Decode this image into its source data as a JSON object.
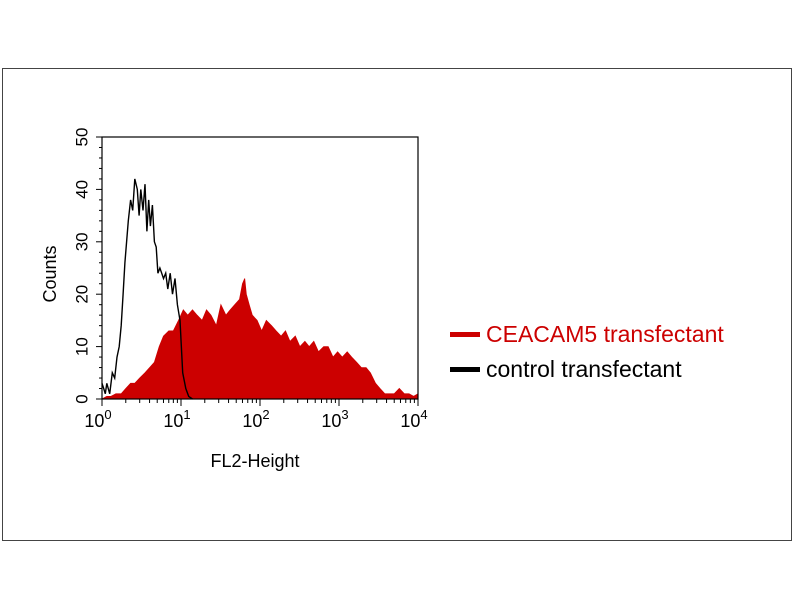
{
  "chart_data": {
    "type": "area",
    "xlabel": "FL2-Height",
    "ylabel": "Counts",
    "xscale": "log",
    "xlim": [
      1,
      10000
    ],
    "ylim": [
      0,
      50
    ],
    "yticks": [
      "0",
      "10",
      "20",
      "30",
      "40",
      "50"
    ],
    "xticks": [
      {
        "base": "10",
        "exp": "0"
      },
      {
        "base": "10",
        "exp": "1"
      },
      {
        "base": "10",
        "exp": "2"
      },
      {
        "base": "10",
        "exp": "3"
      },
      {
        "base": "10",
        "exp": "4"
      }
    ],
    "grid": false,
    "legend_position": "right",
    "series": [
      {
        "name": "CEACAM5 transfectant",
        "style": "filled",
        "color": "#cc0000",
        "x": [
          1,
          1.15,
          1.3,
          1.5,
          1.75,
          2,
          2.3,
          2.6,
          3,
          3.5,
          4,
          4.6,
          5.3,
          6,
          7,
          8,
          9.3,
          10.7,
          12.2,
          14,
          16,
          18.5,
          21,
          24,
          28,
          32,
          37,
          42,
          48,
          55,
          60,
          64,
          67,
          73,
          80,
          92,
          105,
          120,
          140,
          160,
          185,
          210,
          240,
          280,
          320,
          370,
          420,
          480,
          550,
          640,
          730,
          840,
          960,
          1100,
          1270,
          1450,
          1670,
          1920,
          2200,
          2500,
          2900,
          3300,
          3800,
          4400,
          5000,
          5800,
          6700,
          7700,
          8800,
          10000
        ],
        "y": [
          0,
          0.5,
          0.5,
          1,
          1,
          2,
          3,
          3,
          4,
          5,
          6,
          7,
          10,
          12,
          13,
          13,
          15,
          17,
          16,
          17,
          16,
          15,
          17,
          16,
          14,
          18,
          16,
          17,
          18,
          19,
          22,
          23,
          20,
          18,
          16,
          15,
          13,
          15,
          14,
          13,
          12,
          13,
          11,
          12,
          10,
          11,
          10,
          11,
          9,
          10,
          10,
          8,
          9,
          8,
          9,
          8,
          7,
          6,
          6,
          5,
          3,
          2,
          1,
          1,
          1,
          2,
          1,
          1,
          0.5,
          1
        ]
      },
      {
        "name": "control transfectant",
        "style": "line",
        "color": "#000000",
        "x": [
          1,
          1.05,
          1.1,
          1.15,
          1.25,
          1.35,
          1.45,
          1.55,
          1.65,
          1.75,
          1.85,
          1.95,
          2.05,
          2.15,
          2.3,
          2.45,
          2.6,
          2.8,
          2.95,
          3.1,
          3.3,
          3.5,
          3.7,
          3.9,
          4.1,
          4.35,
          4.6,
          4.85,
          5.1,
          5.4,
          5.7,
          6,
          6.4,
          6.8,
          7.3,
          7.8,
          8.4,
          9,
          9.7,
          10.5,
          11.5,
          12.5,
          14
        ],
        "y": [
          3,
          2,
          1,
          3,
          1,
          5,
          4,
          8,
          10,
          14,
          20,
          26,
          30,
          34,
          38,
          36,
          42,
          40,
          35,
          40,
          36,
          41,
          32,
          38,
          33,
          37,
          30,
          29,
          24,
          25,
          24,
          23,
          24,
          21,
          24,
          20,
          23,
          18,
          15,
          5,
          2,
          0.5,
          0
        ]
      }
    ]
  }
}
